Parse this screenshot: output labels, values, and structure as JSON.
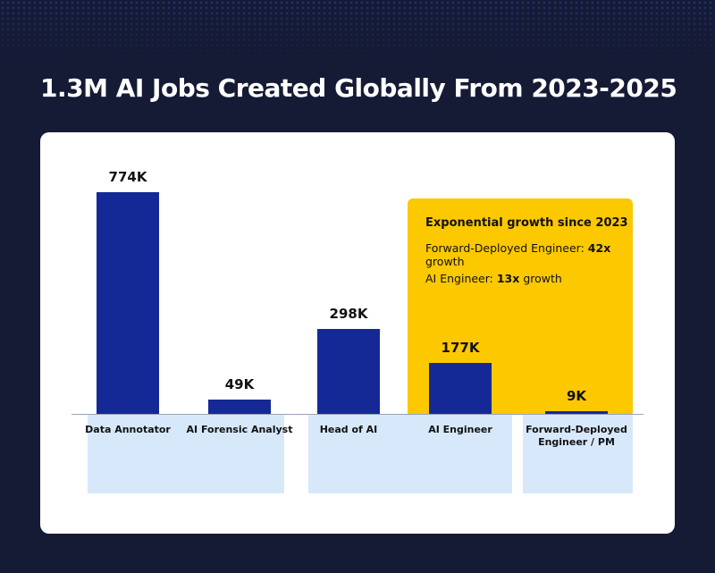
{
  "chart_data": {
    "type": "bar",
    "title": "1.3M AI Jobs Created Globally From 2023-2025",
    "categories": [
      "Data Annotator",
      "AI Forensic Analyst",
      "Head of AI",
      "AI Engineer",
      "Forward-Deployed Engineer / PM"
    ],
    "values": [
      774,
      49,
      298,
      177,
      9
    ],
    "value_labels": [
      "774K",
      "49K",
      "298K",
      "177K",
      "9K"
    ],
    "color": "#152996",
    "annotation": {
      "title": "Exponential growth since 2023",
      "items": [
        {
          "label": "Forward-Deployed Engineer:",
          "value": "42x",
          "suffix": "growth"
        },
        {
          "label": "AI Engineer:",
          "value": "13x",
          "suffix": "growth"
        }
      ]
    }
  }
}
